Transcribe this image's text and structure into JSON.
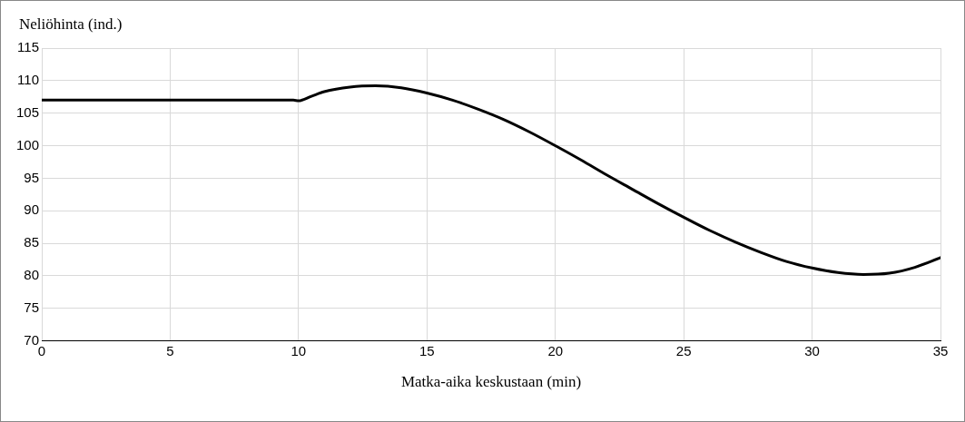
{
  "chart_data": {
    "type": "line",
    "ylabel": "Neliöhinta (ind.)",
    "xlabel": "Matka-aika keskustaan (min)",
    "x": [
      0,
      9.8,
      10,
      10.5,
      11,
      12,
      13,
      14,
      15,
      16,
      17,
      18,
      19,
      20,
      21,
      22,
      23,
      24,
      25,
      26,
      27,
      28,
      29,
      30,
      31,
      32,
      33,
      34,
      35
    ],
    "series": [
      {
        "color": "#000000",
        "values": [
          107,
          107,
          106.9,
          107.6,
          108.3,
          109,
          109.2,
          108.9,
          108.1,
          107,
          105.6,
          104,
          102.1,
          100,
          97.8,
          95.5,
          93.3,
          91.1,
          89,
          87,
          85.2,
          83.6,
          82.2,
          81.2,
          80.5,
          80.2,
          80.4,
          81.3,
          82.8
        ]
      }
    ],
    "xlim": [
      0,
      35
    ],
    "xticks": [
      0,
      5,
      10,
      15,
      20,
      25,
      30,
      35
    ],
    "ylim": [
      70,
      115
    ],
    "yticks": [
      70,
      75,
      80,
      85,
      90,
      95,
      100,
      105,
      110,
      115
    ],
    "grid": true,
    "marker": "none",
    "line_style": "solid"
  }
}
